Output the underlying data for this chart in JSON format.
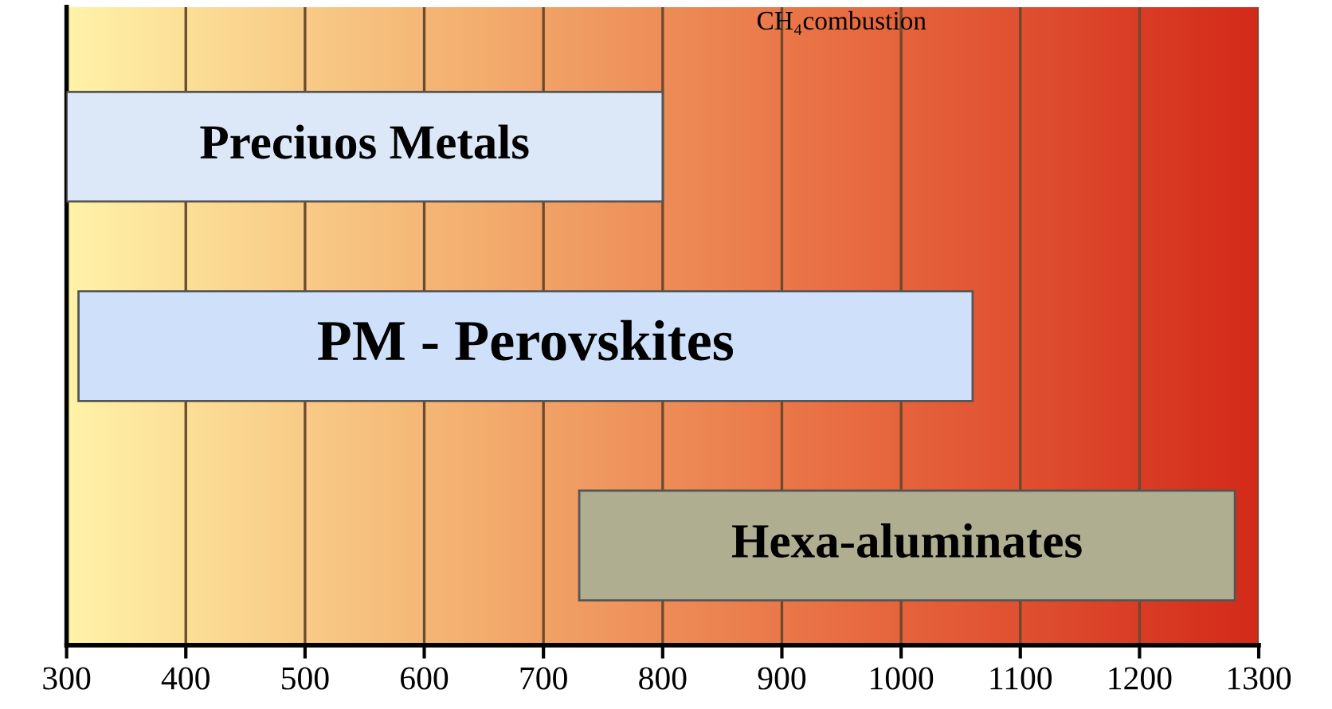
{
  "chart_data": {
    "type": "bar",
    "orientation": "horizontal",
    "categories": [
      "Preciuos Metals",
      "PM - Perovskites",
      "Hexa-aluminates"
    ],
    "base": [
      300,
      310,
      730
    ],
    "values": [
      500,
      750,
      550
    ],
    "colors": [
      "#dce8f8",
      "#cfe0fa",
      "#b0ae90"
    ],
    "xlim": [
      300,
      1300
    ],
    "xticks": [
      300,
      400,
      500,
      600,
      700,
      800,
      900,
      1000,
      1100,
      1200,
      1300
    ],
    "grid": "x",
    "tick_labels": "x",
    "annotations": [
      "CH₄combustion"
    ]
  }
}
